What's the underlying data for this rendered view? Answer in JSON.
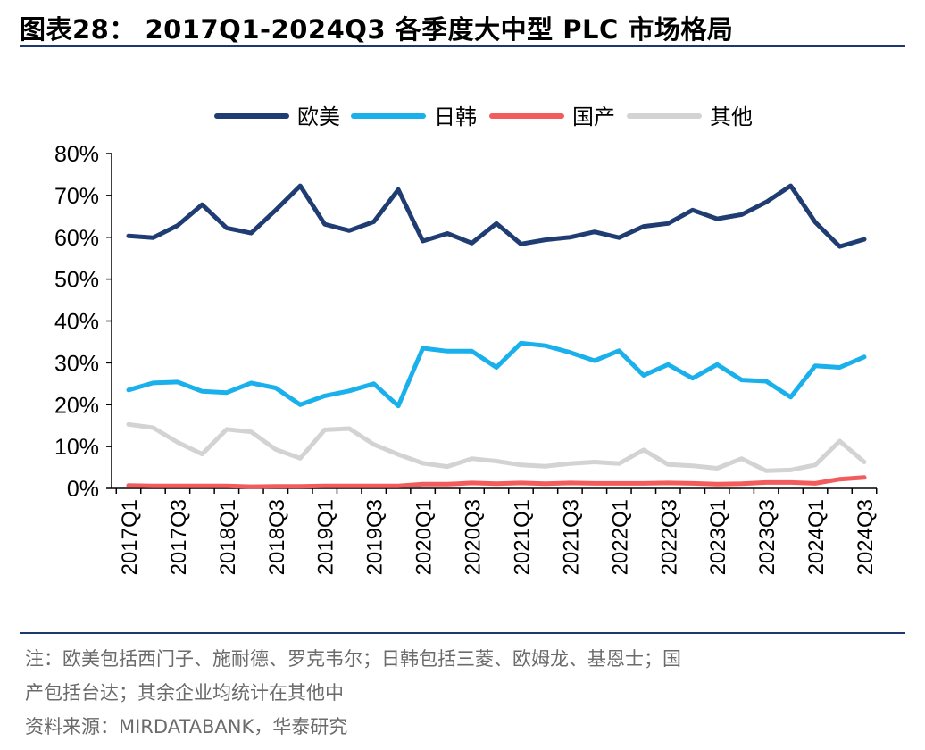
{
  "header": {
    "title": "图表28：  2017Q1-2024Q3 各季度大中型 PLC 市场格局"
  },
  "footer": {
    "note_line1": "注：欧美包括西门子、施耐德、罗克韦尔；日韩包括三菱、欧姆龙、基恩士；国",
    "note_line2": "产包括台达；其余企业均统计在其他中",
    "source": "资料来源：MIRDATABANK，华泰研究"
  },
  "chart_data": {
    "type": "line",
    "title": "",
    "xlabel": "",
    "ylabel": "",
    "ylim": [
      0,
      80
    ],
    "yticks": [
      "0%",
      "10%",
      "20%",
      "30%",
      "40%",
      "50%",
      "60%",
      "70%",
      "80%"
    ],
    "legend_position": "top-center",
    "grid": false,
    "categories": [
      "2017Q1",
      "2017Q2",
      "2017Q3",
      "2017Q4",
      "2018Q1",
      "2018Q2",
      "2018Q3",
      "2018Q4",
      "2019Q1",
      "2019Q2",
      "2019Q3",
      "2019Q4",
      "2020Q1",
      "2020Q2",
      "2020Q3",
      "2020Q4",
      "2021Q1",
      "2021Q2",
      "2021Q3",
      "2021Q4",
      "2022Q1",
      "2022Q2",
      "2022Q3",
      "2022Q4",
      "2023Q1",
      "2023Q2",
      "2023Q3",
      "2023Q4",
      "2024Q1",
      "2024Q2",
      "2024Q3"
    ],
    "tick_labels": [
      "2017Q1",
      "2017Q3",
      "2018Q1",
      "2018Q3",
      "2019Q1",
      "2019Q3",
      "2020Q1",
      "2020Q3",
      "2021Q1",
      "2021Q3",
      "2022Q1",
      "2022Q3",
      "2023Q1",
      "2023Q3",
      "2024Q1",
      "2024Q3"
    ],
    "series": [
      {
        "name": "欧美",
        "color": "#1f3d73",
        "values": [
          60.3,
          59.9,
          62.8,
          67.8,
          62.2,
          61.0,
          66.5,
          72.3,
          63.1,
          61.6,
          63.7,
          71.4,
          59.1,
          60.9,
          58.6,
          63.3,
          58.4,
          59.4,
          60.0,
          61.3,
          59.9,
          62.6,
          63.3,
          66.5,
          64.4,
          65.4,
          68.4,
          72.3,
          63.6,
          57.8,
          59.5
        ]
      },
      {
        "name": "日韩",
        "color": "#19b0ec",
        "values": [
          23.5,
          25.2,
          25.4,
          23.2,
          22.9,
          25.2,
          24.0,
          20.0,
          22.1,
          23.3,
          25.0,
          19.7,
          33.5,
          32.8,
          32.8,
          28.9,
          34.7,
          34.1,
          32.5,
          30.5,
          32.9,
          27.0,
          29.6,
          26.3,
          29.6,
          25.9,
          25.6,
          21.8,
          29.3,
          28.9,
          31.4
        ]
      },
      {
        "name": "国产",
        "color": "#f25c5c",
        "values": [
          0.7,
          0.6,
          0.6,
          0.6,
          0.6,
          0.4,
          0.5,
          0.5,
          0.6,
          0.6,
          0.6,
          0.6,
          1.0,
          1.0,
          1.3,
          1.1,
          1.3,
          1.1,
          1.3,
          1.2,
          1.2,
          1.2,
          1.3,
          1.2,
          1.0,
          1.1,
          1.4,
          1.4,
          1.2,
          2.2,
          2.6
        ]
      },
      {
        "name": "其他",
        "color": "#d3d3d3",
        "values": [
          15.3,
          14.5,
          11.0,
          8.2,
          14.1,
          13.5,
          9.3,
          7.2,
          14.0,
          14.3,
          10.5,
          8.1,
          6.0,
          5.2,
          7.1,
          6.5,
          5.6,
          5.3,
          5.9,
          6.3,
          5.9,
          9.2,
          5.7,
          5.4,
          4.8,
          7.1,
          4.2,
          4.4,
          5.6,
          11.3,
          6.3
        ]
      }
    ]
  }
}
